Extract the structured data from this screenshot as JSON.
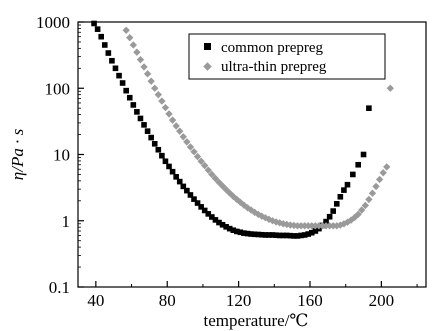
{
  "chart_data": {
    "type": "scatter",
    "xlabel": "temperature/℃",
    "ylabel": "η/Pa · s",
    "xlim": [
      30,
      225
    ],
    "ylim": [
      0.1,
      1000
    ],
    "yscale": "log",
    "x_ticks": [
      40,
      80,
      120,
      160,
      200
    ],
    "y_ticks": [
      {
        "value": 0.1,
        "label": "0.1"
      },
      {
        "value": 1,
        "label": "1"
      },
      {
        "value": 10,
        "label": "10"
      },
      {
        "value": 100,
        "label": "100"
      },
      {
        "value": 1000,
        "label": "1000"
      }
    ],
    "grid": false,
    "legend_position": "top-right",
    "series": [
      {
        "name": "common prepreg",
        "marker": "square",
        "color": "#000000",
        "points": [
          [
            39,
            950
          ],
          [
            41,
            780
          ],
          [
            43,
            600
          ],
          [
            45,
            450
          ],
          [
            47,
            340
          ],
          [
            49,
            260
          ],
          [
            51,
            200
          ],
          [
            53,
            155
          ],
          [
            55,
            120
          ],
          [
            57,
            92
          ],
          [
            59,
            72
          ],
          [
            61,
            56
          ],
          [
            63,
            44
          ],
          [
            65,
            35
          ],
          [
            67,
            28
          ],
          [
            69,
            22.5
          ],
          [
            71,
            18
          ],
          [
            73,
            14.5
          ],
          [
            75,
            11.8
          ],
          [
            77,
            9.6
          ],
          [
            79,
            7.9
          ],
          [
            81,
            6.6
          ],
          [
            83,
            5.5
          ],
          [
            85,
            4.6
          ],
          [
            87,
            3.9
          ],
          [
            89,
            3.3
          ],
          [
            91,
            2.85
          ],
          [
            93,
            2.45
          ],
          [
            95,
            2.12
          ],
          [
            97,
            1.85
          ],
          [
            99,
            1.62
          ],
          [
            101,
            1.43
          ],
          [
            103,
            1.27
          ],
          [
            105,
            1.14
          ],
          [
            107,
            1.03
          ],
          [
            109,
            0.94
          ],
          [
            111,
            0.87
          ],
          [
            113,
            0.81
          ],
          [
            115,
            0.76
          ],
          [
            117,
            0.72
          ],
          [
            119,
            0.69
          ],
          [
            121,
            0.67
          ],
          [
            123,
            0.65
          ],
          [
            125,
            0.64
          ],
          [
            127,
            0.63
          ],
          [
            129,
            0.625
          ],
          [
            131,
            0.62
          ],
          [
            133,
            0.615
          ],
          [
            135,
            0.61
          ],
          [
            137,
            0.61
          ],
          [
            139,
            0.61
          ],
          [
            141,
            0.605
          ],
          [
            143,
            0.6
          ],
          [
            145,
            0.6
          ],
          [
            147,
            0.6
          ],
          [
            149,
            0.595
          ],
          [
            151,
            0.59
          ],
          [
            153,
            0.59
          ],
          [
            155,
            0.6
          ],
          [
            157,
            0.61
          ],
          [
            159,
            0.63
          ],
          [
            161,
            0.66
          ],
          [
            163,
            0.7
          ],
          [
            165,
            0.76
          ],
          [
            167,
            0.85
          ],
          [
            169,
            0.97
          ],
          [
            171,
            1.15
          ],
          [
            173,
            1.4
          ],
          [
            175,
            1.8
          ],
          [
            177,
            2.3
          ],
          [
            179,
            2.9
          ],
          [
            181,
            3.5
          ],
          [
            184,
            5
          ],
          [
            187,
            7
          ],
          [
            190,
            10
          ],
          [
            193,
            50
          ]
        ]
      },
      {
        "name": "ultra-thin prepreg",
        "marker": "diamond",
        "color": "#9a9a9a",
        "points": [
          [
            57,
            750
          ],
          [
            59,
            580
          ],
          [
            61,
            450
          ],
          [
            63,
            350
          ],
          [
            65,
            270
          ],
          [
            67,
            210
          ],
          [
            69,
            165
          ],
          [
            71,
            128
          ],
          [
            73,
            100
          ],
          [
            75,
            80
          ],
          [
            77,
            64
          ],
          [
            79,
            51
          ],
          [
            81,
            41
          ],
          [
            83,
            33
          ],
          [
            85,
            27
          ],
          [
            87,
            22.5
          ],
          [
            89,
            18.5
          ],
          [
            91,
            15.5
          ],
          [
            93,
            13
          ],
          [
            95,
            11
          ],
          [
            97,
            9.3
          ],
          [
            99,
            7.9
          ],
          [
            101,
            6.8
          ],
          [
            103,
            5.8
          ],
          [
            105,
            5
          ],
          [
            107,
            4.35
          ],
          [
            109,
            3.8
          ],
          [
            111,
            3.35
          ],
          [
            113,
            2.95
          ],
          [
            115,
            2.62
          ],
          [
            117,
            2.33
          ],
          [
            119,
            2.1
          ],
          [
            121,
            1.9
          ],
          [
            123,
            1.72
          ],
          [
            125,
            1.57
          ],
          [
            127,
            1.45
          ],
          [
            129,
            1.34
          ],
          [
            131,
            1.25
          ],
          [
            133,
            1.17
          ],
          [
            135,
            1.11
          ],
          [
            137,
            1.05
          ],
          [
            139,
            1.0
          ],
          [
            141,
            0.96
          ],
          [
            143,
            0.93
          ],
          [
            145,
            0.9
          ],
          [
            147,
            0.88
          ],
          [
            149,
            0.86
          ],
          [
            151,
            0.85
          ],
          [
            153,
            0.84
          ],
          [
            155,
            0.84
          ],
          [
            157,
            0.84
          ],
          [
            159,
            0.84
          ],
          [
            161,
            0.84
          ],
          [
            163,
            0.84
          ],
          [
            165,
            0.84
          ],
          [
            167,
            0.84
          ],
          [
            169,
            0.84
          ],
          [
            171,
            0.84
          ],
          [
            173,
            0.84
          ],
          [
            175,
            0.84
          ],
          [
            177,
            0.86
          ],
          [
            179,
            0.9
          ],
          [
            181,
            0.95
          ],
          [
            183,
            1.02
          ],
          [
            185,
            1.12
          ],
          [
            187,
            1.25
          ],
          [
            189,
            1.45
          ],
          [
            191,
            1.7
          ],
          [
            193,
            2.1
          ],
          [
            195,
            2.6
          ],
          [
            197,
            3.3
          ],
          [
            199,
            4.2
          ],
          [
            201,
            5.3
          ],
          [
            203,
            6.5
          ],
          [
            205,
            100
          ]
        ]
      }
    ]
  }
}
